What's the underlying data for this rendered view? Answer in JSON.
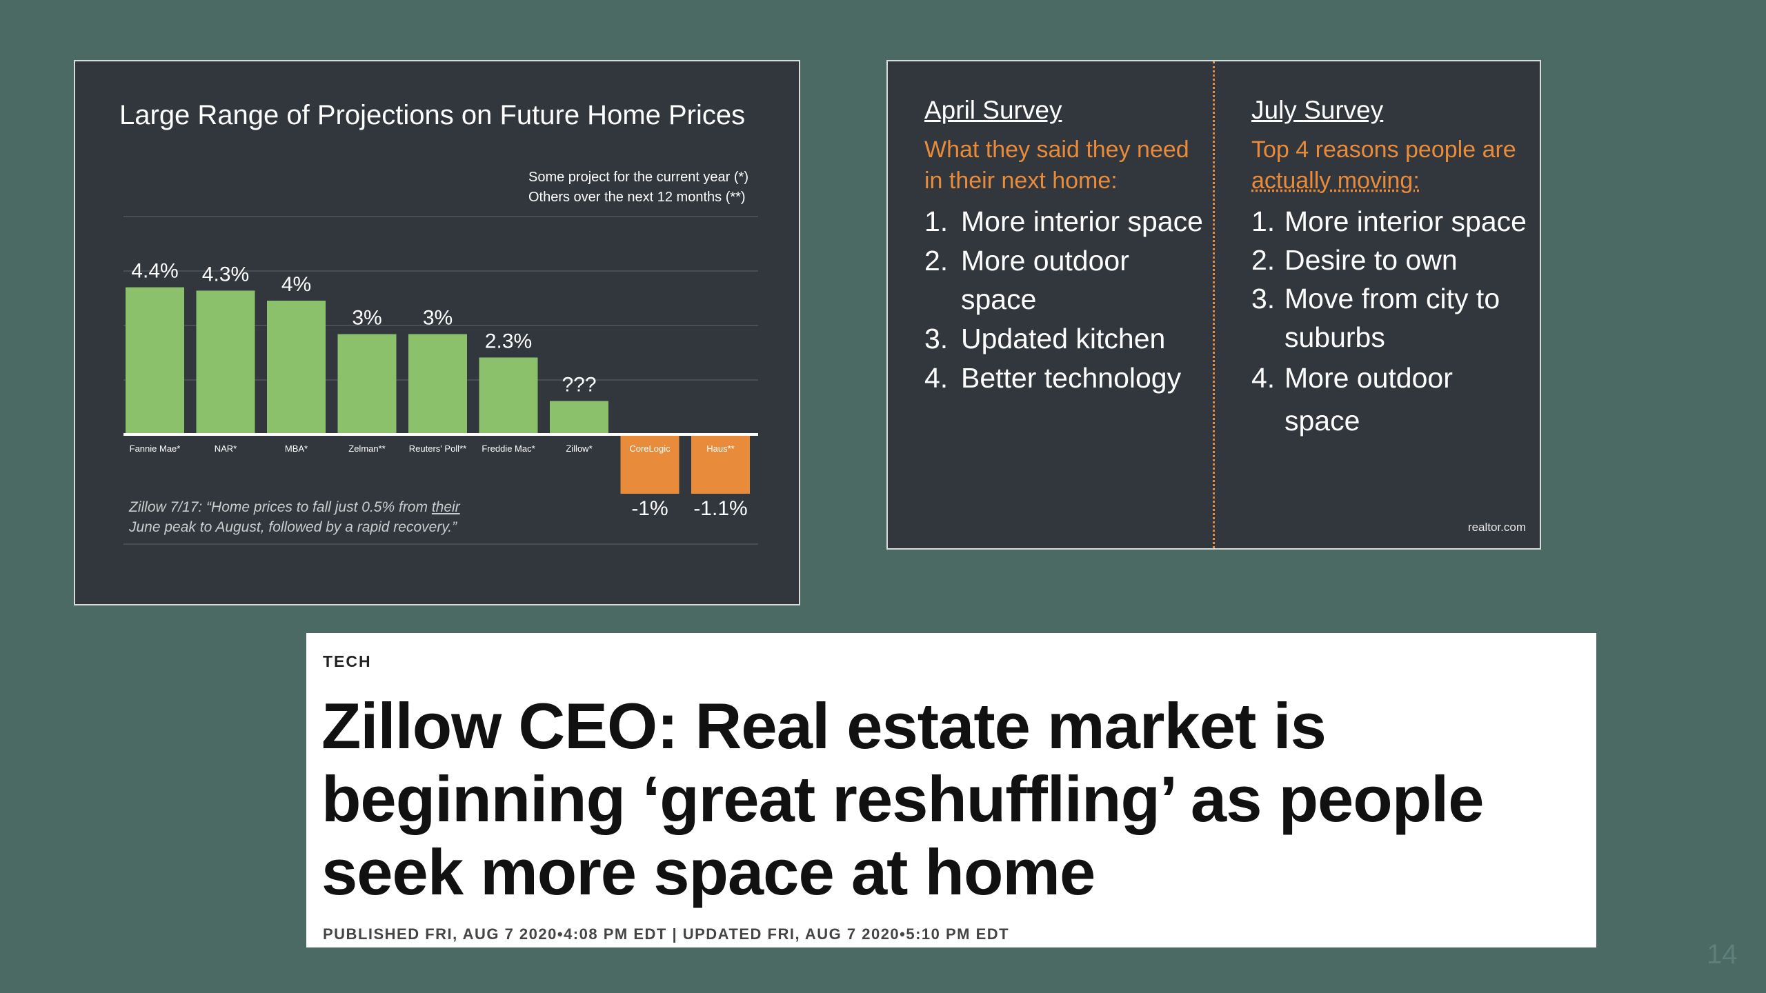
{
  "chart": {
    "title": "Large Range of Projections on Future Home Prices",
    "legend_line1": "Some project for the current year (*)",
    "legend_line2": "Others over the next 12 months (**)",
    "note_prefix": "Zillow 7/17: “Home prices to fall just 0.5% from ",
    "note_underlined": "their",
    "note_suffix": "June peak to August, followed by a rapid recovery.”",
    "colors": {
      "positive": "#8bc16b",
      "negative": "#e88b3b",
      "background": "#32373d"
    }
  },
  "chart_data": {
    "type": "bar",
    "categories": [
      "Fannie Mae*",
      "NAR*",
      "MBA*",
      "Zelman**",
      "Reuters' Poll**",
      "Freddie Mac*",
      "Zillow*",
      "CoreLogic",
      "Haus**"
    ],
    "values": [
      4.4,
      4.3,
      4.0,
      3.0,
      3.0,
      2.3,
      1.0,
      -1.0,
      -1.1
    ],
    "data_labels": [
      "4.4%",
      "4.3%",
      "4%",
      "3%",
      "3%",
      "2.3%",
      "???",
      "-1%",
      "-1.1%"
    ],
    "title": "Large Range of Projections on Future Home Prices",
    "ylim": [
      -1.1,
      4.4
    ],
    "grid": true
  },
  "survey": {
    "april": {
      "heading": "April Survey",
      "sub_line1": "What they said they need",
      "sub_line2": "in their next home:",
      "items": [
        {
          "num": "1.",
          "text": "More interior space"
        },
        {
          "num": "2.",
          "text": "More outdoor space"
        },
        {
          "num": "3.",
          "text": "Updated kitchen"
        },
        {
          "num": "4.",
          "text": "Better technology"
        }
      ]
    },
    "july": {
      "heading": "July Survey",
      "sub_line1": "Top 4 reasons people are",
      "sub_line2": "actually moving:",
      "items": [
        {
          "num": "1.",
          "text": "More interior space"
        },
        {
          "num": "2.",
          "text": "Desire to own"
        },
        {
          "num": "3.",
          "text": "Move from city to suburbs"
        },
        {
          "num": "4.",
          "text": "More outdoor space"
        }
      ]
    },
    "source": "realtor.com"
  },
  "article": {
    "section": "TECH",
    "headline": "Zillow CEO: Real estate market is beginning ‘great reshuffling’ as people seek more space at home",
    "meta": "PUBLISHED FRI, AUG 7 2020•4:08 PM EDT | UPDATED FRI, AUG 7 2020•5:10 PM EDT"
  },
  "page_number": "14"
}
